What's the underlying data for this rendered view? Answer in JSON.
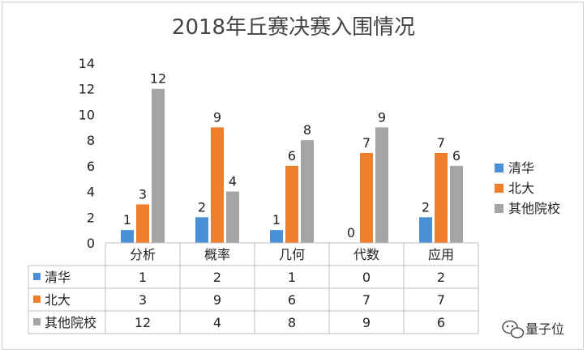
{
  "chart_data": {
    "type": "bar",
    "title": "2018年丘赛决赛入围情况",
    "categories": [
      "分析",
      "概率",
      "几何",
      "代数",
      "应用"
    ],
    "series": [
      {
        "name": "清华",
        "color": "#4a90d9",
        "values": [
          1,
          2,
          1,
          0,
          2
        ]
      },
      {
        "name": "北大",
        "color": "#f07f2c",
        "values": [
          3,
          9,
          6,
          7,
          7
        ]
      },
      {
        "name": "其他院校",
        "color": "#a5a5a5",
        "values": [
          12,
          4,
          8,
          9,
          6
        ]
      }
    ],
    "ylim": [
      0,
      14
    ],
    "yticks": [
      0,
      2,
      4,
      6,
      8,
      10,
      12,
      14
    ],
    "grid": false,
    "legend_position": "right",
    "data_table": true
  },
  "watermark": {
    "text": "量子位",
    "icon": "wechat-icon"
  }
}
